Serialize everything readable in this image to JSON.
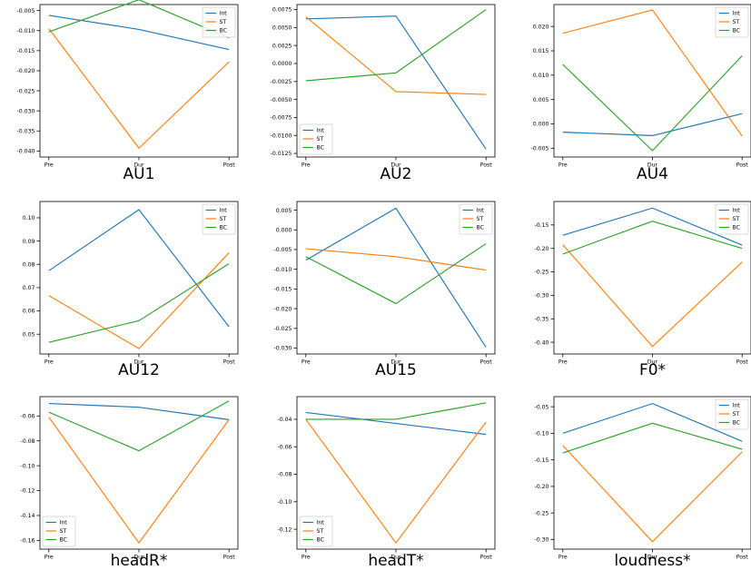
{
  "colors": {
    "Int": "#1f77b4",
    "ST": "#ff7f0e",
    "BC": "#2ca02c"
  },
  "chart_data": [
    {
      "type": "line",
      "title": "AU1",
      "categories": [
        "Pre",
        "Dur",
        "Post"
      ],
      "ylim": [
        -0.0415,
        -0.0035
      ],
      "yticks": [
        -0.005,
        -0.01,
        -0.015,
        -0.02,
        -0.025,
        -0.03,
        -0.035,
        -0.04
      ],
      "ytick_labels": [
        "-0.005",
        "-0.010",
        "-0.015",
        "-0.020",
        "-0.025",
        "-0.030",
        "-0.035",
        "-0.040"
      ],
      "legend": "top-right",
      "series": [
        {
          "name": "Int",
          "values": [
            -0.0062,
            -0.0097,
            -0.0147
          ]
        },
        {
          "name": "ST",
          "values": [
            -0.0095,
            -0.0393,
            -0.0178
          ]
        },
        {
          "name": "BC",
          "values": [
            -0.0103,
            -0.0023,
            -0.0118
          ]
        }
      ]
    },
    {
      "type": "line",
      "title": "AU2",
      "categories": [
        "Pre",
        "Dur",
        "Post"
      ],
      "ylim": [
        -0.013,
        0.0082
      ],
      "yticks": [
        0.0075,
        0.005,
        0.0025,
        0.0,
        -0.0025,
        -0.005,
        -0.0075,
        -0.01,
        -0.0125
      ],
      "ytick_labels": [
        "0.0075",
        "0.0050",
        "0.0025",
        "0.0000",
        "-0.0025",
        "-0.0050",
        "-0.0075",
        "-0.0100",
        "-0.0125"
      ],
      "legend": "bottom-left",
      "series": [
        {
          "name": "Int",
          "values": [
            0.0062,
            0.0066,
            -0.0119
          ]
        },
        {
          "name": "ST",
          "values": [
            0.0065,
            -0.0039,
            -0.0043
          ]
        },
        {
          "name": "BC",
          "values": [
            -0.0024,
            -0.0013,
            0.0075
          ]
        }
      ]
    },
    {
      "type": "line",
      "title": "AU4",
      "categories": [
        "Pre",
        "Dur",
        "Post"
      ],
      "ylim": [
        -0.0068,
        0.0245
      ],
      "yticks": [
        0.02,
        0.015,
        0.01,
        0.005,
        0.0,
        -0.005
      ],
      "ytick_labels": [
        "0.020",
        "0.015",
        "0.010",
        "0.005",
        "0.000",
        "-0.005"
      ],
      "legend": "top-right",
      "series": [
        {
          "name": "Int",
          "values": [
            -0.0017,
            -0.0024,
            0.0021
          ]
        },
        {
          "name": "ST",
          "values": [
            0.0186,
            0.0234,
            -0.0025
          ]
        },
        {
          "name": "BC",
          "values": [
            0.0122,
            -0.0055,
            0.014
          ]
        }
      ]
    },
    {
      "type": "line",
      "title": "AU12",
      "categories": [
        "Pre",
        "Dur",
        "Post"
      ],
      "ylim": [
        0.0415,
        0.107
      ],
      "yticks": [
        0.1,
        0.09,
        0.08,
        0.07,
        0.06,
        0.05
      ],
      "ytick_labels": [
        "0.10",
        "0.09",
        "0.08",
        "0.07",
        "0.06",
        "0.05"
      ],
      "legend": "top-right",
      "series": [
        {
          "name": "Int",
          "values": [
            0.0773,
            0.1035,
            0.0532
          ]
        },
        {
          "name": "ST",
          "values": [
            0.0666,
            0.0438,
            0.085
          ]
        },
        {
          "name": "BC",
          "values": [
            0.0465,
            0.0558,
            0.0803
          ]
        }
      ]
    },
    {
      "type": "line",
      "title": "AU15",
      "categories": [
        "Pre",
        "Dur",
        "Post"
      ],
      "ylim": [
        -0.0315,
        0.0072
      ],
      "yticks": [
        0.005,
        0.0,
        -0.005,
        -0.01,
        -0.015,
        -0.02,
        -0.025,
        -0.03
      ],
      "ytick_labels": [
        "0.005",
        "0.000",
        "-0.005",
        "-0.010",
        "-0.015",
        "-0.020",
        "-0.025",
        "-0.030"
      ],
      "legend": "top-right",
      "series": [
        {
          "name": "Int",
          "values": [
            -0.0077,
            0.0055,
            -0.0298
          ]
        },
        {
          "name": "ST",
          "values": [
            -0.0048,
            -0.0068,
            -0.0102
          ]
        },
        {
          "name": "BC",
          "values": [
            -0.0068,
            -0.0187,
            -0.0035
          ]
        }
      ]
    },
    {
      "type": "line",
      "title": "F0*",
      "categories": [
        "Pre",
        "Dur",
        "Post"
      ],
      "ylim": [
        -0.425,
        -0.1
      ],
      "yticks": [
        -0.15,
        -0.2,
        -0.25,
        -0.3,
        -0.35,
        -0.4
      ],
      "ytick_labels": [
        "-0.15",
        "-0.20",
        "-0.25",
        "-0.30",
        "-0.35",
        "-0.40"
      ],
      "legend": "top-right",
      "series": [
        {
          "name": "Int",
          "values": [
            -0.172,
            -0.114,
            -0.193
          ]
        },
        {
          "name": "ST",
          "values": [
            -0.192,
            -0.409,
            -0.229
          ]
        },
        {
          "name": "BC",
          "values": [
            -0.212,
            -0.142,
            -0.2
          ]
        }
      ]
    },
    {
      "type": "line",
      "title": "headR*",
      "categories": [
        "Pre",
        "Dur",
        "Post"
      ],
      "ylim": [
        -0.167,
        -0.0445
      ],
      "yticks": [
        -0.06,
        -0.08,
        -0.1,
        -0.12,
        -0.14,
        -0.16
      ],
      "ytick_labels": [
        "-0.06",
        "-0.08",
        "-0.10",
        "-0.12",
        "-0.14",
        "-0.16"
      ],
      "legend": "bottom-left",
      "series": [
        {
          "name": "Int",
          "values": [
            -0.05,
            -0.053,
            -0.063
          ]
        },
        {
          "name": "ST",
          "values": [
            -0.061,
            -0.162,
            -0.063
          ]
        },
        {
          "name": "BC",
          "values": [
            -0.057,
            -0.088,
            -0.048
          ]
        }
      ]
    },
    {
      "type": "line",
      "title": "headT*",
      "categories": [
        "Pre",
        "Dur",
        "Post"
      ],
      "ylim": [
        -0.1345,
        -0.0235
      ],
      "yticks": [
        -0.04,
        -0.06,
        -0.08,
        -0.1,
        -0.12
      ],
      "ytick_labels": [
        "-0.04",
        "-0.06",
        "-0.08",
        "-0.10",
        "-0.12"
      ],
      "legend": "bottom-left",
      "series": [
        {
          "name": "Int",
          "values": [
            -0.035,
            -0.043,
            -0.051
          ]
        },
        {
          "name": "ST",
          "values": [
            -0.04,
            -0.13,
            -0.042
          ]
        },
        {
          "name": "BC",
          "values": [
            -0.04,
            -0.04,
            -0.028
          ]
        }
      ]
    },
    {
      "type": "line",
      "title": "loudness*",
      "categories": [
        "Pre",
        "Dur",
        "Post"
      ],
      "ylim": [
        -0.318,
        -0.031
      ],
      "yticks": [
        -0.05,
        -0.1,
        -0.15,
        -0.2,
        -0.25,
        -0.3
      ],
      "ytick_labels": [
        "-0.05",
        "-0.10",
        "-0.15",
        "-0.20",
        "-0.25",
        "-0.30"
      ],
      "legend": "top-right",
      "series": [
        {
          "name": "Int",
          "values": [
            -0.1,
            -0.044,
            -0.115
          ]
        },
        {
          "name": "ST",
          "values": [
            -0.123,
            -0.304,
            -0.135
          ]
        },
        {
          "name": "BC",
          "values": [
            -0.137,
            -0.081,
            -0.13
          ]
        }
      ]
    }
  ]
}
